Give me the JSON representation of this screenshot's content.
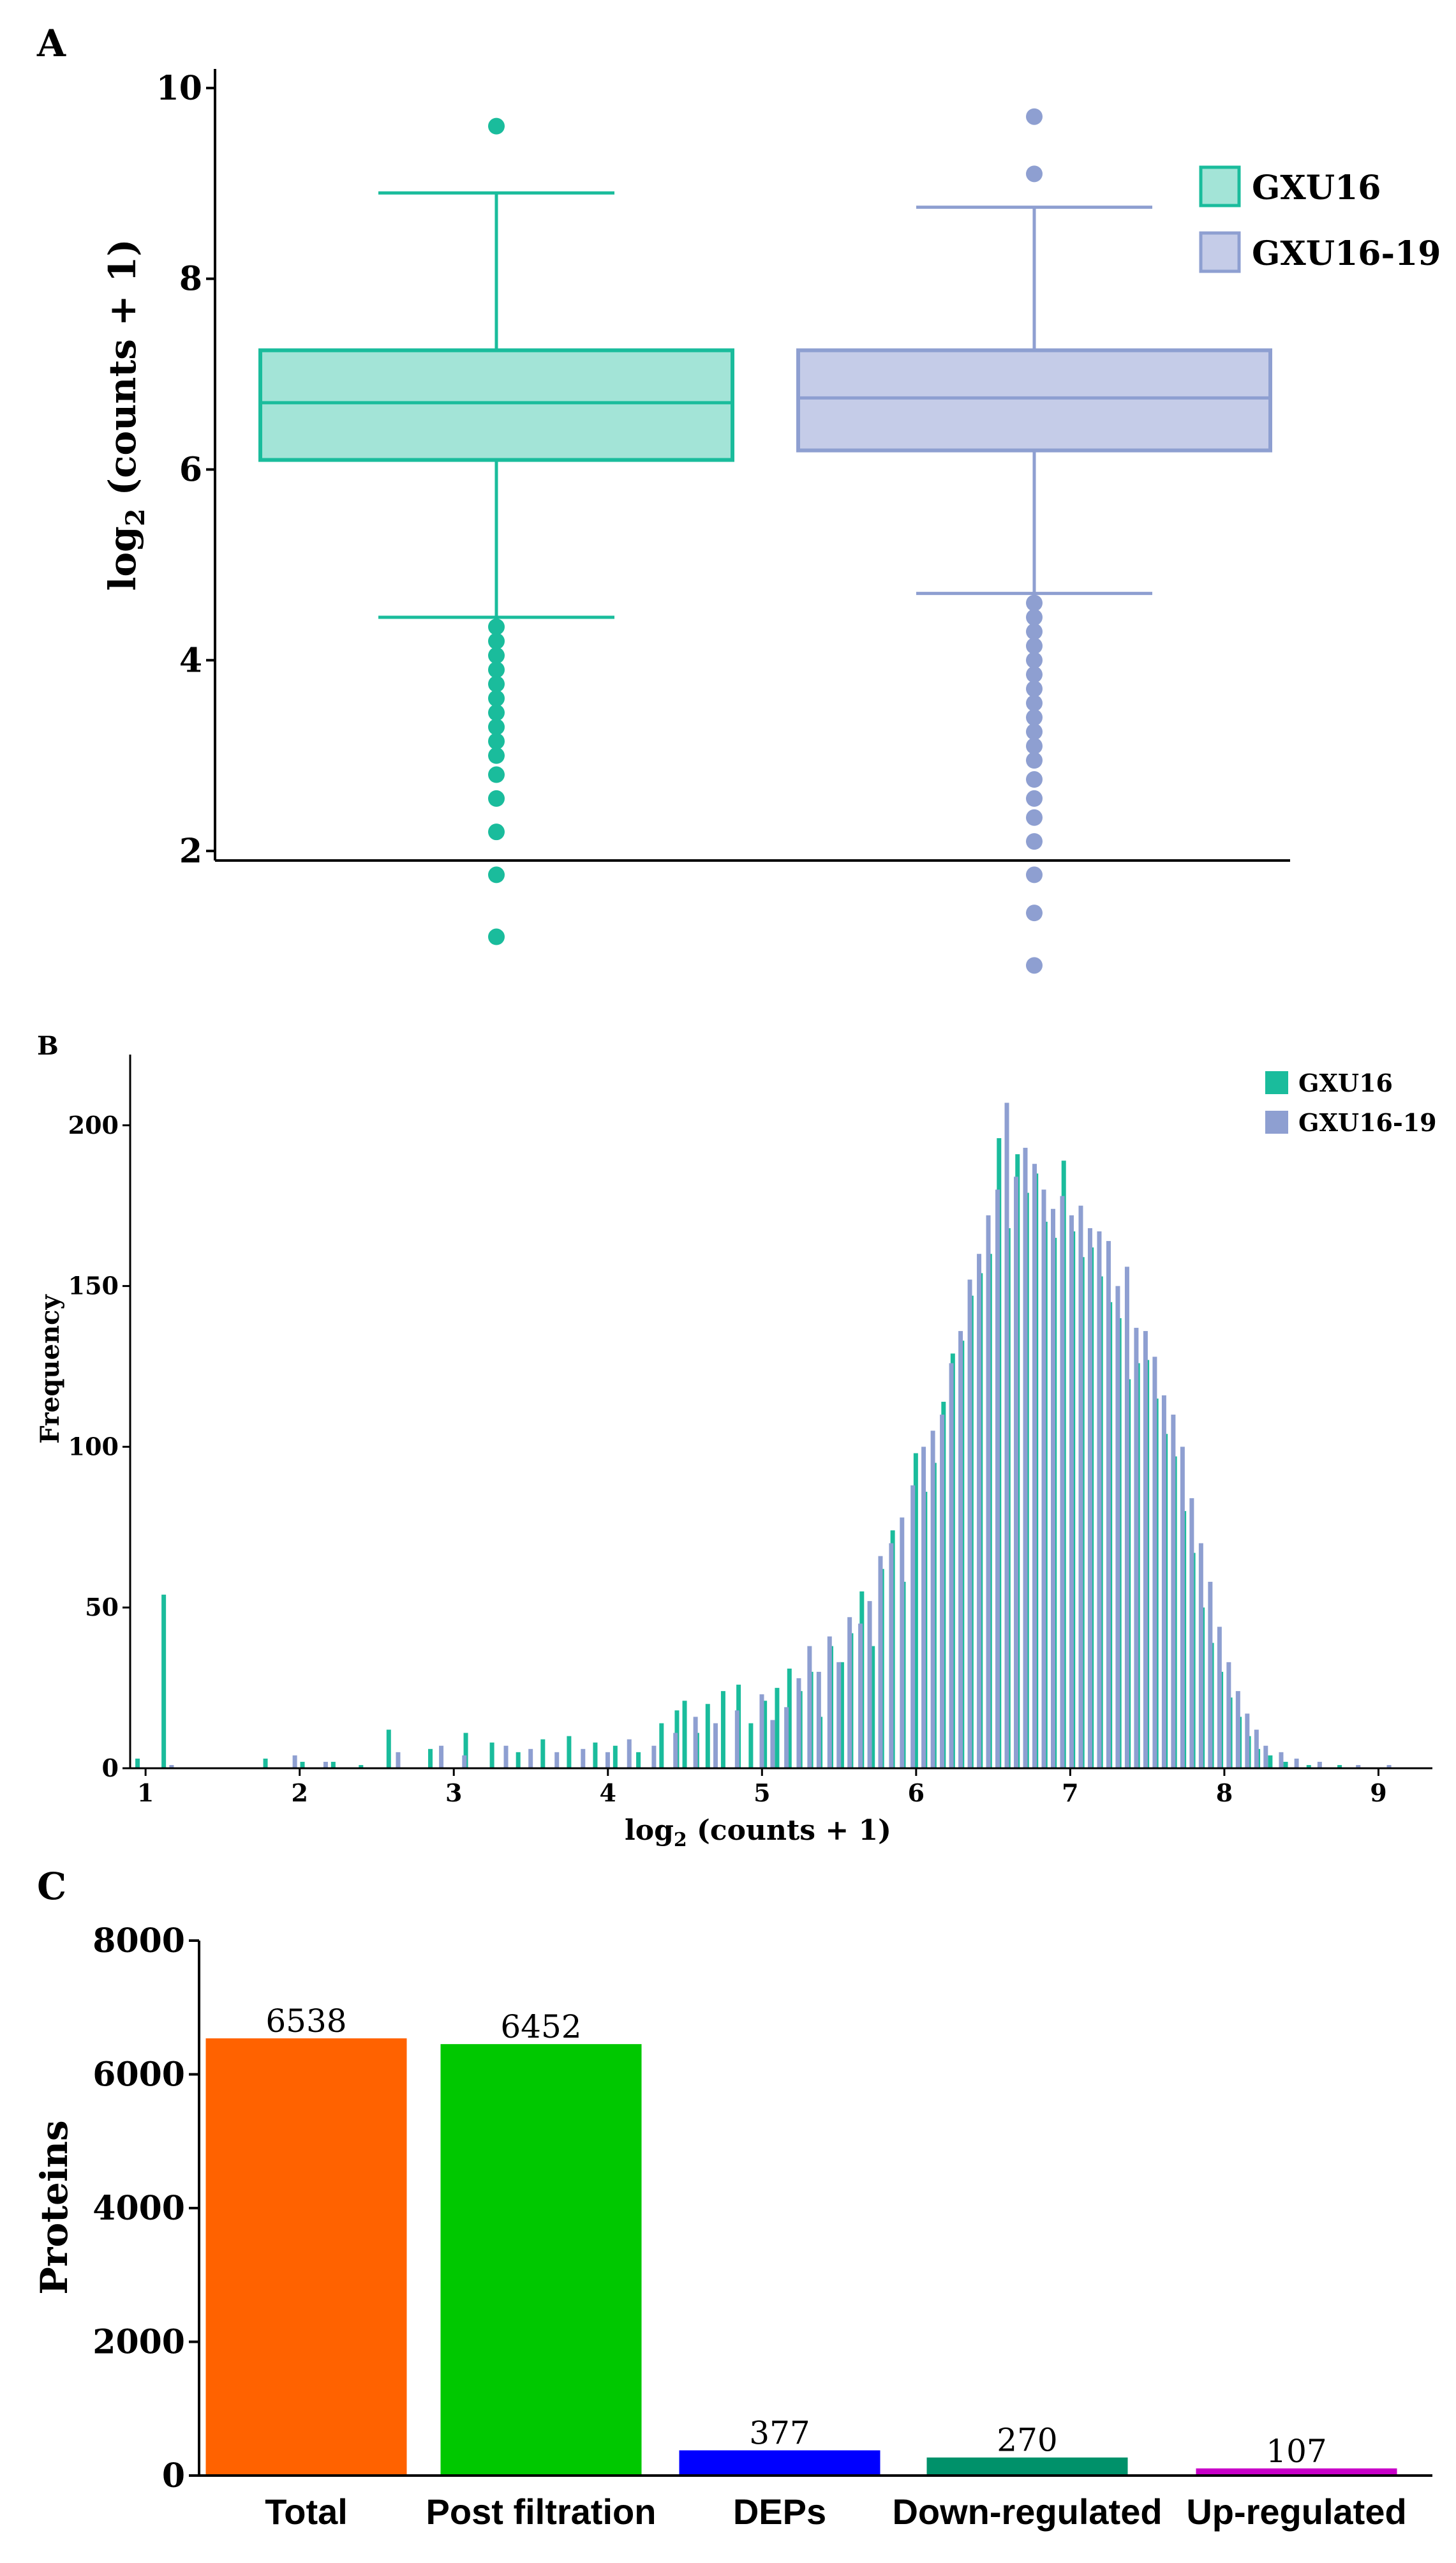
{
  "chart_data": [
    {
      "panel": "A",
      "type": "box",
      "ylabel_main": "log",
      "ylabel_sub": "2",
      "ylabel_rest": " (counts + 1)",
      "ylim": [
        1.9,
        10.2
      ],
      "yticks": [
        "2",
        "4",
        "6",
        "8",
        "10"
      ],
      "grid": false,
      "legend_position": "top-right",
      "series": [
        {
          "name": "GXU16",
          "color": "#1ABC9C",
          "fill": "#A3E4D7",
          "whisker_low": 4.45,
          "q1": 6.1,
          "median": 6.7,
          "q3": 7.25,
          "whisker_high": 8.9,
          "outliers_high": [
            9.6
          ],
          "outliers_low": [
            4.35,
            4.2,
            4.05,
            3.9,
            3.75,
            3.6,
            3.45,
            3.3,
            3.15,
            3.0,
            2.8,
            2.55,
            2.2,
            1.75,
            1.1
          ]
        },
        {
          "name": "GXU16-19",
          "color": "#8E9FD1",
          "fill": "#C5CCE8",
          "whisker_low": 4.7,
          "q1": 6.2,
          "median": 6.75,
          "q3": 7.25,
          "whisker_high": 8.75,
          "outliers_high": [
            9.1,
            9.7
          ],
          "outliers_low": [
            4.6,
            4.45,
            4.3,
            4.15,
            4.0,
            3.85,
            3.7,
            3.55,
            3.4,
            3.25,
            3.1,
            2.95,
            2.75,
            2.55,
            2.35,
            2.1,
            1.75,
            1.35,
            0.8
          ]
        }
      ]
    },
    {
      "panel": "B",
      "type": "bar",
      "title": "",
      "xlabel_main": "log",
      "xlabel_sub": "2",
      "xlabel_rest": " (counts + 1)",
      "ylabel": "Frequency",
      "xlim": [
        0.9,
        9.35
      ],
      "ylim": [
        0,
        222
      ],
      "xticks": [
        "1",
        "2",
        "3",
        "4",
        "5",
        "6",
        "7",
        "8",
        "9"
      ],
      "yticks": [
        "0",
        "50",
        "100",
        "150",
        "200"
      ],
      "grid": false,
      "legend_position": "top-right",
      "series": [
        {
          "name": "GXU16",
          "color": "#1ABC9C",
          "points": [
            [
              0.95,
              3
            ],
            [
              1.12,
              54
            ],
            [
              1.78,
              3
            ],
            [
              2.02,
              2
            ],
            [
              2.22,
              2
            ],
            [
              2.4,
              1
            ],
            [
              2.58,
              12
            ],
            [
              2.85,
              6
            ],
            [
              3.08,
              11
            ],
            [
              3.25,
              8
            ],
            [
              3.42,
              5
            ],
            [
              3.58,
              9
            ],
            [
              3.75,
              10
            ],
            [
              3.92,
              8
            ],
            [
              4.05,
              7
            ],
            [
              4.2,
              5
            ],
            [
              4.35,
              14
            ],
            [
              4.45,
              18
            ],
            [
              4.5,
              21
            ],
            [
              4.58,
              11
            ],
            [
              4.65,
              20
            ],
            [
              4.75,
              24
            ],
            [
              4.85,
              26
            ],
            [
              4.93,
              14
            ],
            [
              5.02,
              21
            ],
            [
              5.1,
              25
            ],
            [
              5.18,
              31
            ],
            [
              5.25,
              24
            ],
            [
              5.32,
              30
            ],
            [
              5.38,
              16
            ],
            [
              5.45,
              38
            ],
            [
              5.52,
              33
            ],
            [
              5.58,
              42
            ],
            [
              5.65,
              55
            ],
            [
              5.72,
              38
            ],
            [
              5.78,
              62
            ],
            [
              5.85,
              74
            ],
            [
              5.92,
              58
            ],
            [
              6.0,
              98
            ],
            [
              6.06,
              86
            ],
            [
              6.12,
              95
            ],
            [
              6.18,
              114
            ],
            [
              6.24,
              129
            ],
            [
              6.3,
              133
            ],
            [
              6.36,
              147
            ],
            [
              6.42,
              154
            ],
            [
              6.48,
              160
            ],
            [
              6.54,
              196
            ],
            [
              6.6,
              168
            ],
            [
              6.66,
              191
            ],
            [
              6.72,
              179
            ],
            [
              6.78,
              185
            ],
            [
              6.84,
              170
            ],
            [
              6.9,
              165
            ],
            [
              6.96,
              189
            ],
            [
              7.02,
              167
            ],
            [
              7.08,
              159
            ],
            [
              7.14,
              162
            ],
            [
              7.2,
              153
            ],
            [
              7.26,
              145
            ],
            [
              7.32,
              140
            ],
            [
              7.38,
              121
            ],
            [
              7.44,
              126
            ],
            [
              7.5,
              127
            ],
            [
              7.56,
              115
            ],
            [
              7.62,
              104
            ],
            [
              7.68,
              97
            ],
            [
              7.74,
              80
            ],
            [
              7.8,
              67
            ],
            [
              7.86,
              50
            ],
            [
              7.92,
              39
            ],
            [
              7.98,
              30
            ],
            [
              8.04,
              22
            ],
            [
              8.1,
              16
            ],
            [
              8.16,
              10
            ],
            [
              8.22,
              6
            ],
            [
              8.3,
              4
            ],
            [
              8.4,
              2
            ],
            [
              8.55,
              1
            ],
            [
              8.75,
              1
            ]
          ]
        },
        {
          "name": "GXU16-19",
          "color": "#8E9FD1",
          "points": [
            [
              1.15,
              1
            ],
            [
              1.95,
              4
            ],
            [
              2.15,
              2
            ],
            [
              2.62,
              5
            ],
            [
              2.9,
              7
            ],
            [
              3.05,
              4
            ],
            [
              3.32,
              7
            ],
            [
              3.48,
              6
            ],
            [
              3.65,
              5
            ],
            [
              3.82,
              6
            ],
            [
              3.98,
              5
            ],
            [
              4.12,
              9
            ],
            [
              4.28,
              7
            ],
            [
              4.42,
              11
            ],
            [
              4.55,
              16
            ],
            [
              4.68,
              14
            ],
            [
              4.82,
              18
            ],
            [
              4.98,
              23
            ],
            [
              5.05,
              15
            ],
            [
              5.14,
              19
            ],
            [
              5.22,
              28
            ],
            [
              5.29,
              38
            ],
            [
              5.35,
              30
            ],
            [
              5.42,
              41
            ],
            [
              5.48,
              33
            ],
            [
              5.55,
              47
            ],
            [
              5.62,
              45
            ],
            [
              5.68,
              52
            ],
            [
              5.75,
              66
            ],
            [
              5.82,
              70
            ],
            [
              5.89,
              78
            ],
            [
              5.96,
              88
            ],
            [
              6.03,
              100
            ],
            [
              6.09,
              105
            ],
            [
              6.15,
              110
            ],
            [
              6.21,
              126
            ],
            [
              6.27,
              136
            ],
            [
              6.33,
              152
            ],
            [
              6.39,
              160
            ],
            [
              6.45,
              172
            ],
            [
              6.51,
              180
            ],
            [
              6.57,
              207
            ],
            [
              6.63,
              184
            ],
            [
              6.69,
              193
            ],
            [
              6.75,
              188
            ],
            [
              6.81,
              180
            ],
            [
              6.87,
              174
            ],
            [
              6.93,
              178
            ],
            [
              6.99,
              172
            ],
            [
              7.05,
              175
            ],
            [
              7.11,
              168
            ],
            [
              7.17,
              167
            ],
            [
              7.23,
              164
            ],
            [
              7.29,
              150
            ],
            [
              7.35,
              156
            ],
            [
              7.41,
              137
            ],
            [
              7.47,
              136
            ],
            [
              7.53,
              128
            ],
            [
              7.59,
              116
            ],
            [
              7.65,
              110
            ],
            [
              7.71,
              100
            ],
            [
              7.77,
              84
            ],
            [
              7.83,
              70
            ],
            [
              7.89,
              58
            ],
            [
              7.95,
              44
            ],
            [
              8.01,
              33
            ],
            [
              8.07,
              24
            ],
            [
              8.13,
              17
            ],
            [
              8.19,
              12
            ],
            [
              8.25,
              7
            ],
            [
              8.35,
              5
            ],
            [
              8.45,
              3
            ],
            [
              8.6,
              2
            ],
            [
              8.85,
              1
            ],
            [
              9.05,
              1
            ]
          ]
        }
      ]
    },
    {
      "panel": "C",
      "type": "bar",
      "title": "",
      "xlabel": "",
      "ylabel": "Proteins",
      "categories": [
        "Total",
        "Post filtration",
        "DEPs",
        "Down-regulated",
        "Up-regulated"
      ],
      "values": [
        6538,
        6452,
        377,
        270,
        107
      ],
      "value_labels": [
        "6538",
        "6452",
        "377",
        "270",
        "107"
      ],
      "colors": [
        "#FF6200",
        "#00C800",
        "#0000FF",
        "#00916A",
        "#C800C8"
      ],
      "ylim": [
        0,
        8000
      ],
      "yticks": [
        "0",
        "2000",
        "4000",
        "6000",
        "8000"
      ],
      "grid": false
    }
  ],
  "panel_labels": {
    "a": "A",
    "b": "B",
    "c": "C"
  }
}
